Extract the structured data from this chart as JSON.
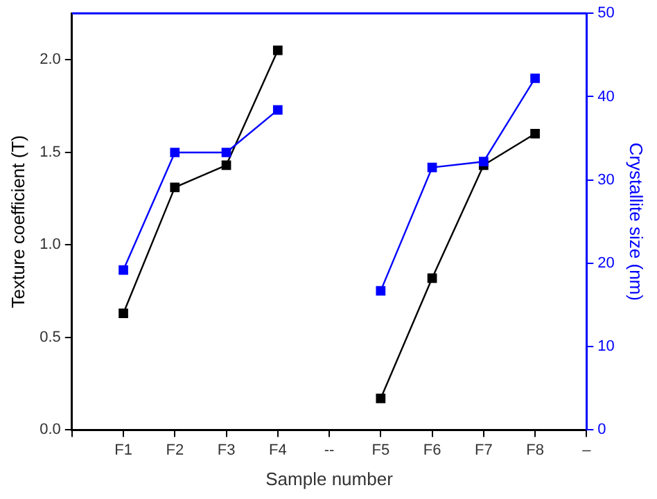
{
  "chart_data": {
    "type": "line",
    "xlabel": "Sample number",
    "ylabel": "Texture coefficient (T)",
    "y2label": "Crystallite size (nm)",
    "categories": [
      null,
      "F1",
      "F2",
      "F3",
      "F4",
      "--",
      "F5",
      "F6",
      "F7",
      "F8",
      "–"
    ],
    "series": [
      {
        "color": "#000000",
        "values": [
          null,
          0.63,
          1.31,
          1.43,
          2.05,
          null,
          0.17,
          0.82,
          1.43,
          1.6,
          null
        ]
      },
      {
        "color": "#0000ff",
        "axis": "y2",
        "values": [
          null,
          19.2,
          33.3,
          33.3,
          38.4,
          null,
          16.7,
          31.5,
          32.2,
          42.2,
          null
        ]
      }
    ],
    "ylim": [
      0,
      2.25
    ],
    "yticks": [
      {
        "value": 0,
        "label": "0.0"
      },
      {
        "value": 0.5,
        "label": "0.5"
      },
      {
        "value": 1,
        "label": "1.0"
      },
      {
        "value": 1.5,
        "label": "1.5"
      },
      {
        "value": 2,
        "label": "2.0"
      }
    ],
    "y2lim": [
      0,
      50
    ],
    "y2ticks": [
      0,
      10,
      20,
      30,
      40,
      50
    ],
    "grid": false,
    "legend": false,
    "marker": "square",
    "line_style": "solid"
  }
}
